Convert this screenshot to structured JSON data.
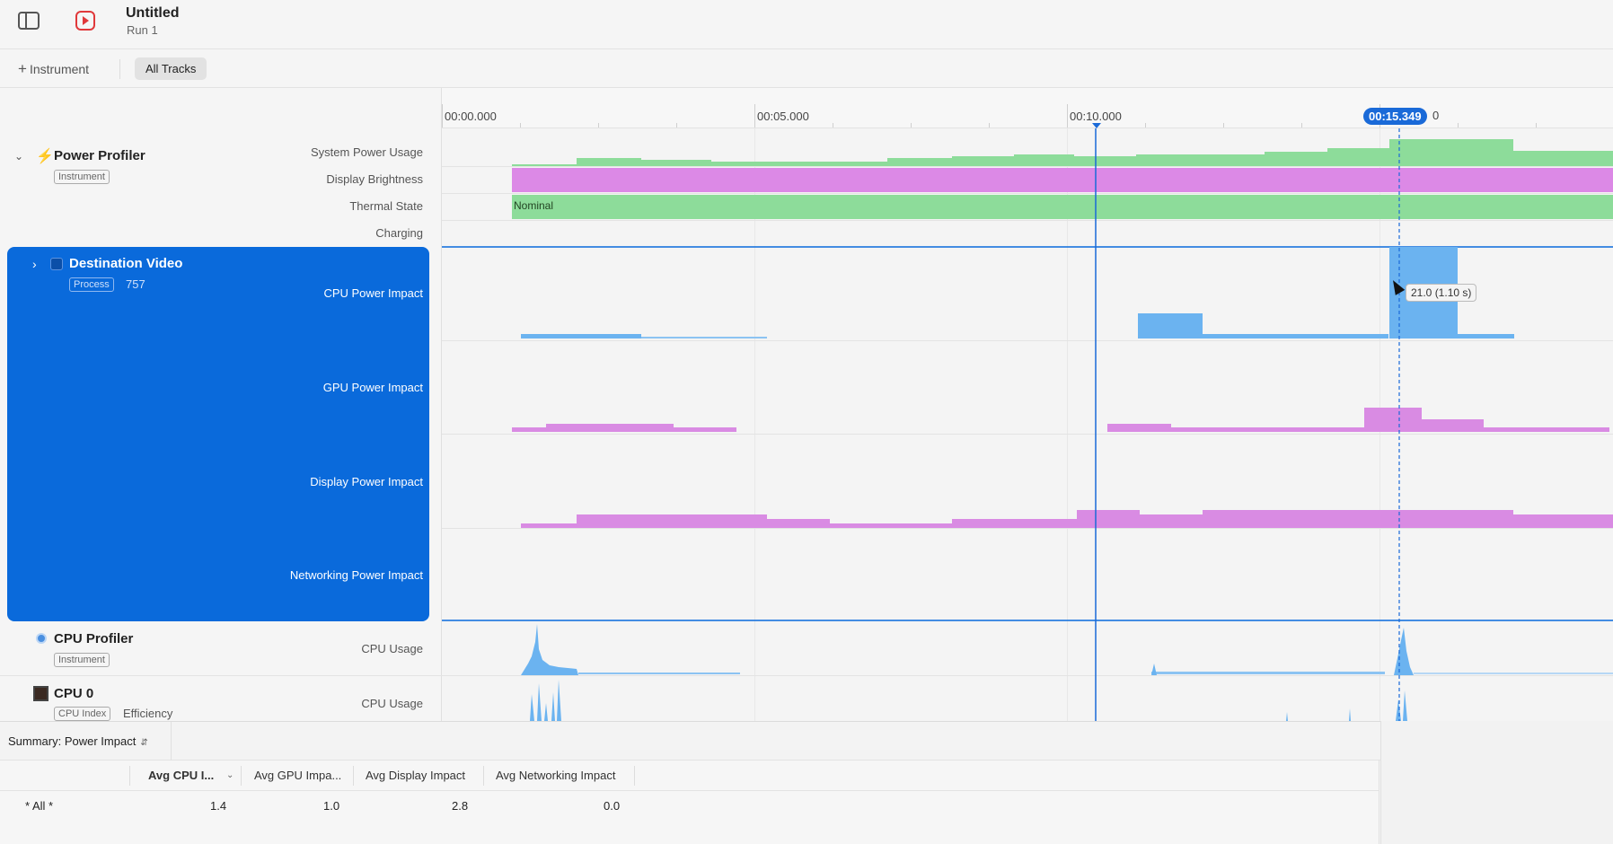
{
  "window": {
    "title": "Untitled",
    "run": "Run 1"
  },
  "toolbar": {
    "add_instrument": "Instrument",
    "all_tracks": "All Tracks"
  },
  "ruler": {
    "ticks": [
      "00:00.000",
      "00:05.000",
      "00:10.000"
    ],
    "playhead": "00:15.349",
    "playhead_tail": "0"
  },
  "tracks": {
    "power_profiler": {
      "title": "Power Profiler",
      "tag": "Instrument",
      "rows": [
        "System Power Usage",
        "Display Brightness",
        "Thermal State",
        "Charging"
      ],
      "thermal_value": "Nominal"
    },
    "destination_video": {
      "title": "Destination Video",
      "tag": "Process",
      "pid": "757",
      "rows": [
        "CPU Power Impact",
        "GPU Power Impact",
        "Display Power Impact",
        "Networking Power Impact"
      ]
    },
    "cpu_profiler": {
      "title": "CPU Profiler",
      "tag": "Instrument",
      "row": "CPU Usage"
    },
    "cpu0": {
      "title": "CPU 0",
      "tag": "CPU Index",
      "extra": "Efficiency",
      "row": "CPU Usage"
    }
  },
  "tooltip": "21.0 (1.10 s)",
  "summary": {
    "label": "Summary: Power Impact",
    "columns": [
      "Avg CPU I...",
      "Avg GPU Impa...",
      "Avg Display Impact",
      "Avg Networking Impact"
    ],
    "rows": [
      {
        "name": "* All *",
        "cpu": "1.4",
        "gpu": "1.0",
        "display": "2.8",
        "networking": "0.0"
      }
    ]
  },
  "colors": {
    "accent": "#0a6adb",
    "cpu": "#6bb3f0",
    "gpu": "#d98be3",
    "green": "#8ddc9a",
    "record": "#e0383a"
  }
}
